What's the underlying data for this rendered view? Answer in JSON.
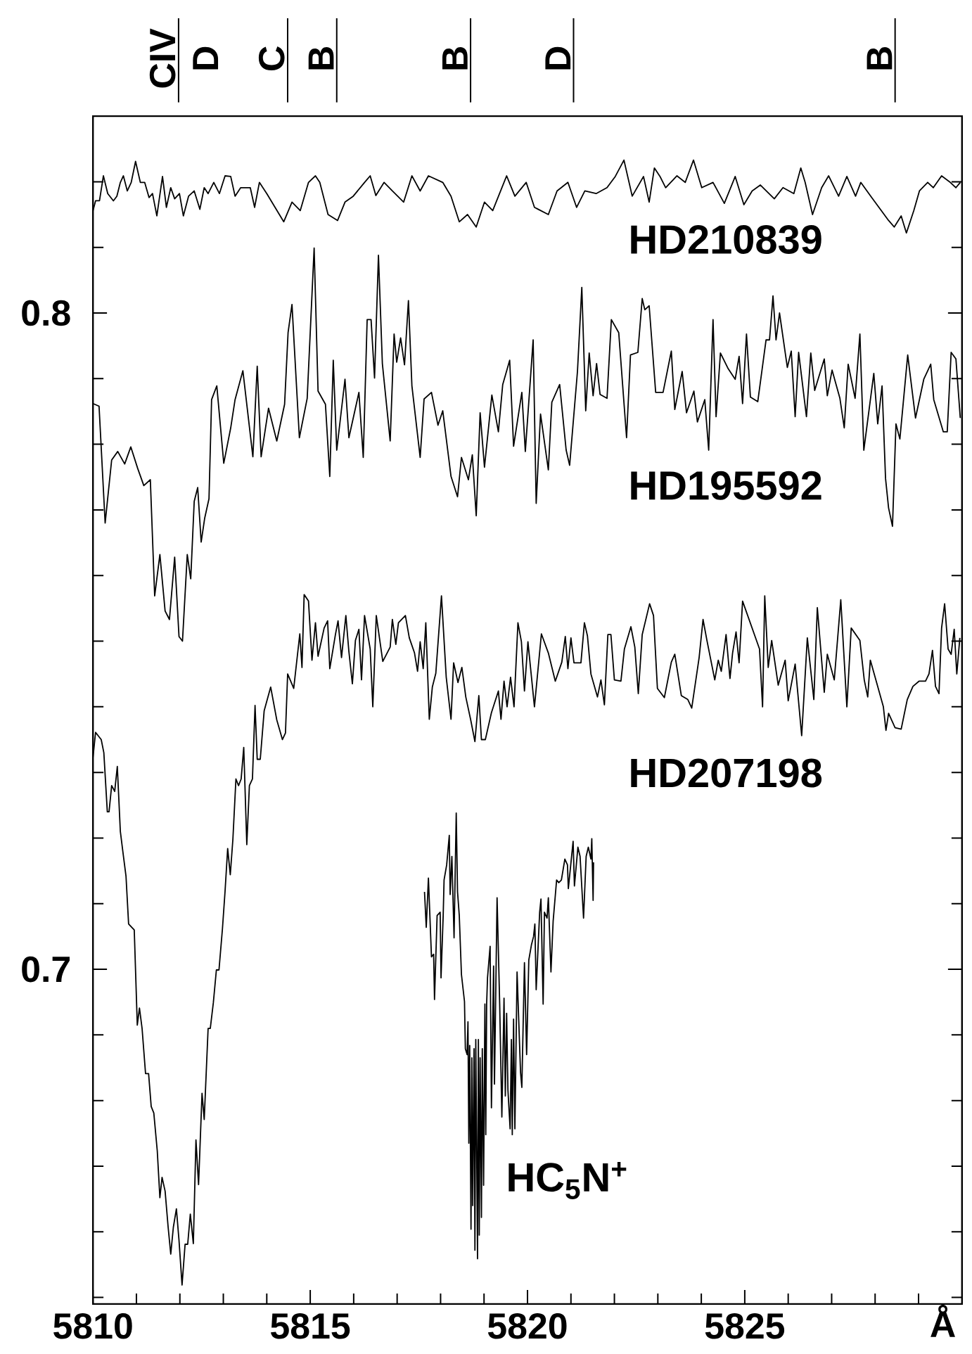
{
  "chart_data": {
    "type": "line",
    "xlabel": "Å",
    "xlim": [
      5810,
      5830
    ],
    "ylim": [
      0.649,
      0.83
    ],
    "xticks": [
      5810,
      {
        "value": 5811,
        "label": null
      },
      {
        "value": 5812,
        "label": null
      },
      {
        "value": 5813,
        "label": null
      },
      {
        "value": 5814,
        "label": null
      },
      5815,
      {
        "value": 5816,
        "label": null
      },
      {
        "value": 5817,
        "label": null
      },
      {
        "value": 5818,
        "label": null
      },
      {
        "value": 5819,
        "label": null
      },
      5820,
      {
        "value": 5821,
        "label": null
      },
      {
        "value": 5822,
        "label": null
      },
      {
        "value": 5823,
        "label": null
      },
      {
        "value": 5824,
        "label": null
      },
      5825,
      {
        "value": 5826,
        "label": null
      },
      {
        "value": 5827,
        "label": null
      },
      {
        "value": 5828,
        "label": null
      },
      {
        "value": 5829,
        "label": null
      }
    ],
    "yticks": [
      {
        "value": 0.65,
        "label": null
      },
      {
        "value": 0.66,
        "label": null
      },
      {
        "value": 0.67,
        "label": null
      },
      {
        "value": 0.68,
        "label": null
      },
      {
        "value": 0.69,
        "label": null
      },
      0.7,
      {
        "value": 0.71,
        "label": null
      },
      {
        "value": 0.72,
        "label": null
      },
      {
        "value": 0.73,
        "label": null
      },
      {
        "value": 0.74,
        "label": null
      },
      {
        "value": 0.75,
        "label": null
      },
      {
        "value": 0.76,
        "label": null
      },
      {
        "value": 0.77,
        "label": null
      },
      {
        "value": 0.78,
        "label": null
      },
      {
        "value": 0.79,
        "label": null
      },
      0.8,
      {
        "value": 0.81,
        "label": null
      },
      {
        "value": 0.82,
        "label": null
      },
      {
        "value": 0.83,
        "label": null
      }
    ],
    "ref_lines": [
      {
        "axis": "x",
        "value": 5811.97,
        "label": "CIV"
      },
      {
        "axis": "x",
        "value": 5814.48,
        "label": "C"
      },
      {
        "axis": "x",
        "value": 5815.61,
        "label": "B"
      },
      {
        "axis": "x",
        "value": 5818.69,
        "label": "B"
      },
      {
        "axis": "x",
        "value": 5821.06,
        "label": "D"
      },
      {
        "axis": "x",
        "value": 5828.46,
        "label": "B"
      }
    ],
    "annotations": [
      "D"
    ],
    "series": [
      {
        "name": "HD210839",
        "color": "#000000",
        "x": [
          5810.0,
          5810.06,
          5810.15,
          5810.24,
          5810.34,
          5810.47,
          5810.55,
          5810.63,
          5810.7,
          5810.79,
          5810.88,
          5810.98,
          5811.09,
          5811.19,
          5811.29,
          5811.37,
          5811.47,
          5811.6,
          5811.69,
          5811.79,
          5811.88,
          5811.99,
          5812.08,
          5812.2,
          5812.33,
          5812.46,
          5812.56,
          5812.65,
          5812.78,
          5812.91,
          5813.04,
          5813.17,
          5813.27,
          5813.4,
          5813.62,
          5813.72,
          5813.83,
          5814.0,
          5814.19,
          5814.39,
          5814.58,
          5814.77,
          5814.96,
          5815.12,
          5815.22,
          5815.41,
          5815.63,
          5815.8,
          5815.99,
          5816.25,
          5816.38,
          5816.51,
          5816.7,
          5816.89,
          5817.15,
          5817.34,
          5817.53,
          5817.72,
          5818.05,
          5818.24,
          5818.43,
          5818.62,
          5818.82,
          5819.01,
          5819.2,
          5819.52,
          5819.71,
          5819.97,
          5820.16,
          5820.48,
          5820.68,
          5820.93,
          5821.13,
          5821.32,
          5821.58,
          5821.83,
          5822.02,
          5822.22,
          5822.41,
          5822.67,
          5822.8,
          5822.92,
          5823.05,
          5823.18,
          5823.44,
          5823.63,
          5823.82,
          5824.01,
          5824.27,
          5824.53,
          5824.78,
          5824.98,
          5825.17,
          5825.36,
          5825.68,
          5825.88,
          5826.13,
          5826.29,
          5826.39,
          5826.56,
          5826.77,
          5826.93,
          5827.16,
          5827.35,
          5827.55,
          5827.67,
          5827.9,
          5828.12,
          5828.31,
          5828.44,
          5828.6,
          5828.72,
          5828.89,
          5829.02,
          5829.21,
          5829.34,
          5829.53,
          5829.73,
          5829.86,
          5829.96
        ],
        "values": [
          0.8156,
          0.8171,
          0.8171,
          0.8209,
          0.8182,
          0.8171,
          0.8178,
          0.8199,
          0.8209,
          0.8186,
          0.8199,
          0.8231,
          0.8199,
          0.8199,
          0.8176,
          0.8182,
          0.8148,
          0.8208,
          0.8161,
          0.8191,
          0.8174,
          0.8182,
          0.8148,
          0.8178,
          0.8186,
          0.8158,
          0.8191,
          0.8182,
          0.8199,
          0.8182,
          0.8209,
          0.8208,
          0.8178,
          0.8191,
          0.8191,
          0.8161,
          0.8199,
          0.8182,
          0.8161,
          0.8139,
          0.8169,
          0.8156,
          0.8199,
          0.8209,
          0.8199,
          0.815,
          0.8141,
          0.8169,
          0.8178,
          0.8199,
          0.8209,
          0.8179,
          0.8199,
          0.8186,
          0.8169,
          0.8209,
          0.8186,
          0.8209,
          0.8199,
          0.8178,
          0.8139,
          0.815,
          0.8131,
          0.8169,
          0.8156,
          0.8209,
          0.8178,
          0.8199,
          0.8161,
          0.815,
          0.8186,
          0.8199,
          0.8161,
          0.8186,
          0.8182,
          0.8191,
          0.8208,
          0.8233,
          0.8178,
          0.8208,
          0.8169,
          0.8221,
          0.8208,
          0.8191,
          0.8209,
          0.8199,
          0.8233,
          0.8191,
          0.8199,
          0.8167,
          0.8208,
          0.8165,
          0.8186,
          0.8195,
          0.8174,
          0.8191,
          0.8182,
          0.8221,
          0.8199,
          0.815,
          0.8191,
          0.8209,
          0.8178,
          0.8208,
          0.8178,
          0.8199,
          0.8178,
          0.8158,
          0.8141,
          0.8131,
          0.8148,
          0.8122,
          0.8156,
          0.8186,
          0.8199,
          0.8191,
          0.8209,
          0.8199,
          0.8191,
          0.8199
        ]
      },
      {
        "name": "HD195592",
        "color": "#000000",
        "x": [
          5810.0,
          5810.14,
          5810.28,
          5810.43,
          5810.57,
          5810.73,
          5810.87,
          5811.03,
          5811.17,
          5811.32,
          5811.42,
          5811.54,
          5811.66,
          5811.76,
          5811.88,
          5811.98,
          5812.06,
          5812.17,
          5812.25,
          5812.33,
          5812.41,
          5812.49,
          5812.57,
          5812.67,
          5812.73,
          5812.85,
          5813.01,
          5813.17,
          5813.27,
          5813.45,
          5813.68,
          5813.78,
          5813.87,
          5814.04,
          5814.23,
          5814.41,
          5814.49,
          5814.58,
          5814.75,
          5814.93,
          5815.09,
          5815.18,
          5815.35,
          5815.45,
          5815.53,
          5815.61,
          5815.8,
          5815.89,
          5816.12,
          5816.22,
          5816.31,
          5816.4,
          5816.48,
          5816.57,
          5816.66,
          5816.84,
          5816.93,
          5816.99,
          5817.08,
          5817.17,
          5817.26,
          5817.34,
          5817.53,
          5817.62,
          5817.79,
          5817.94,
          5818.05,
          5818.24,
          5818.39,
          5818.48,
          5818.64,
          5818.73,
          5818.82,
          5818.91,
          5819.01,
          5819.18,
          5819.33,
          5819.43,
          5819.59,
          5819.68,
          5819.87,
          5819.95,
          5820.13,
          5820.2,
          5820.3,
          5820.48,
          5820.56,
          5820.74,
          5820.89,
          5820.97,
          5821.15,
          5821.25,
          5821.34,
          5821.42,
          5821.51,
          5821.59,
          5821.67,
          5821.83,
          5821.93,
          5822.1,
          5822.28,
          5822.37,
          5822.54,
          5822.64,
          5822.7,
          5822.8,
          5822.95,
          5823.12,
          5823.31,
          5823.39,
          5823.56,
          5823.66,
          5823.83,
          5823.91,
          5824.08,
          5824.17,
          5824.27,
          5824.34,
          5824.44,
          5824.62,
          5824.78,
          5824.87,
          5824.95,
          5825.04,
          5825.13,
          5825.3,
          5825.49,
          5825.57,
          5825.65,
          5825.72,
          5825.8,
          5825.98,
          5826.07,
          5826.16,
          5826.24,
          5826.42,
          5826.52,
          5826.61,
          5826.83,
          5826.9,
          5827.01,
          5827.19,
          5827.29,
          5827.38,
          5827.54,
          5827.65,
          5827.74,
          5827.97,
          5828.06,
          5828.16,
          5828.24,
          5828.31,
          5828.4,
          5828.48,
          5828.57,
          5828.75,
          5828.93,
          5829.12,
          5829.28,
          5829.35,
          5829.57,
          5829.66,
          5829.75,
          5829.86,
          5829.96
        ],
        "values": [
          0.7862,
          0.7858,
          0.768,
          0.7776,
          0.7789,
          0.777,
          0.7796,
          0.7763,
          0.7737,
          0.7746,
          0.7569,
          0.7632,
          0.7546,
          0.7533,
          0.7628,
          0.7507,
          0.75,
          0.7632,
          0.7595,
          0.7713,
          0.7734,
          0.7651,
          0.7687,
          0.7717,
          0.7868,
          0.7889,
          0.7771,
          0.7825,
          0.7868,
          0.7912,
          0.7781,
          0.7919,
          0.7781,
          0.7855,
          0.7805,
          0.7861,
          0.797,
          0.8013,
          0.781,
          0.787,
          0.8099,
          0.7881,
          0.7861,
          0.7751,
          0.7928,
          0.7791,
          0.7899,
          0.781,
          0.7879,
          0.778,
          0.799,
          0.799,
          0.7901,
          0.8088,
          0.7923,
          0.7805,
          0.7968,
          0.7925,
          0.7962,
          0.7921,
          0.8019,
          0.7889,
          0.778,
          0.7869,
          0.7879,
          0.7829,
          0.7851,
          0.7751,
          0.772,
          0.778,
          0.7746,
          0.7784,
          0.7691,
          0.7848,
          0.7765,
          0.7875,
          0.7819,
          0.7891,
          0.7928,
          0.7797,
          0.7879,
          0.7789,
          0.7959,
          0.771,
          0.7846,
          0.7761,
          0.7864,
          0.7891,
          0.7791,
          0.7768,
          0.7911,
          0.8039,
          0.7851,
          0.7939,
          0.7874,
          0.7923,
          0.7876,
          0.787,
          0.799,
          0.797,
          0.781,
          0.7936,
          0.794,
          0.8022,
          0.8005,
          0.8011,
          0.7879,
          0.7879,
          0.7942,
          0.7853,
          0.7911,
          0.7848,
          0.7881,
          0.7834,
          0.7868,
          0.7791,
          0.799,
          0.7842,
          0.7939,
          0.7915,
          0.7899,
          0.7934,
          0.7862,
          0.7968,
          0.7872,
          0.7865,
          0.7959,
          0.7959,
          0.8026,
          0.7959,
          0.8,
          0.7917,
          0.7942,
          0.7842,
          0.794,
          0.7842,
          0.7939,
          0.7882,
          0.793,
          0.7874,
          0.7913,
          0.787,
          0.7825,
          0.7922,
          0.787,
          0.7968,
          0.7791,
          0.7908,
          0.7831,
          0.7889,
          0.7748,
          0.7703,
          0.7675,
          0.7831,
          0.7808,
          0.7936,
          0.784,
          0.7899,
          0.7922,
          0.7868,
          0.7819,
          0.7819,
          0.794,
          0.793,
          0.784
        ]
      },
      {
        "name": "HD207198",
        "color": "#000000",
        "x": [
          5810.0,
          5810.06,
          5810.19,
          5810.25,
          5810.33,
          5810.37,
          5810.43,
          5810.5,
          5810.56,
          5810.63,
          5810.69,
          5810.76,
          5810.82,
          5810.95,
          5811.02,
          5811.07,
          5811.13,
          5811.21,
          5811.28,
          5811.34,
          5811.4,
          5811.48,
          5811.54,
          5811.59,
          5811.66,
          5811.73,
          5811.79,
          5811.85,
          5811.92,
          5811.98,
          5812.05,
          5812.12,
          5812.18,
          5812.24,
          5812.31,
          5812.37,
          5812.43,
          5812.51,
          5812.56,
          5812.65,
          5812.7,
          5812.77,
          5812.84,
          5812.9,
          5812.98,
          5813.04,
          5813.1,
          5813.16,
          5813.22,
          5813.29,
          5813.35,
          5813.41,
          5813.47,
          5813.54,
          5813.6,
          5813.67,
          5813.73,
          5813.78,
          5813.85,
          5813.94,
          5814.09,
          5814.23,
          5814.36,
          5814.43,
          5814.48,
          5814.62,
          5814.76,
          5814.81,
          5814.86,
          5814.96,
          5815.04,
          5815.12,
          5815.18,
          5815.32,
          5815.4,
          5815.45,
          5815.58,
          5815.64,
          5815.72,
          5815.82,
          5815.89,
          5815.97,
          5816.04,
          5816.12,
          5816.18,
          5816.25,
          5816.38,
          5816.44,
          5816.52,
          5816.67,
          5816.84,
          5816.89,
          5816.97,
          5817.03,
          5817.19,
          5817.28,
          5817.4,
          5817.47,
          5817.53,
          5817.6,
          5817.66,
          5817.74,
          5817.81,
          5817.89,
          5818.02,
          5818.13,
          5818.24,
          5818.3,
          5818.4,
          5818.49,
          5818.58,
          5818.69,
          5818.79,
          5818.88,
          5818.94,
          5819.03,
          5819.17,
          5819.33,
          5819.39,
          5819.46,
          5819.53,
          5819.61,
          5819.69,
          5819.78,
          5819.86,
          5819.93,
          5820.01,
          5820.16,
          5820.32,
          5820.48,
          5820.64,
          5820.79,
          5820.87,
          5820.93,
          5821.0,
          5821.07,
          5821.23,
          5821.31,
          5821.38,
          5821.46,
          5821.61,
          5821.69,
          5821.77,
          5821.85,
          5821.92,
          5822.0,
          5822.15,
          5822.23,
          5822.38,
          5822.47,
          5822.55,
          5822.64,
          5822.81,
          5822.9,
          5822.99,
          5823.15,
          5823.31,
          5823.39,
          5823.54,
          5823.69,
          5823.78,
          5823.95,
          5824.04,
          5824.13,
          5824.31,
          5824.39,
          5824.46,
          5824.57,
          5824.66,
          5824.72,
          5824.8,
          5824.87,
          5824.95,
          5825.34,
          5825.41,
          5825.46,
          5825.54,
          5825.62,
          5825.77,
          5825.93,
          5826.0,
          5826.16,
          5826.31,
          5826.44,
          5826.59,
          5826.67,
          5826.83,
          5826.9,
          5827.06,
          5827.21,
          5827.35,
          5827.45,
          5827.65,
          5827.75,
          5827.83,
          5827.89,
          5828.06,
          5828.19,
          5828.25,
          5828.31,
          5828.46,
          5828.6,
          5828.74,
          5828.87,
          5829.01,
          5829.16,
          5829.24,
          5829.32,
          5829.39,
          5829.47,
          5829.53,
          5829.6,
          5829.68,
          5829.75,
          5829.82,
          5829.88,
          5829.95
        ],
        "values": [
          0.7323,
          0.7361,
          0.735,
          0.733,
          0.724,
          0.724,
          0.728,
          0.7271,
          0.7309,
          0.721,
          0.7178,
          0.7142,
          0.7069,
          0.706,
          0.6915,
          0.6941,
          0.691,
          0.6841,
          0.6841,
          0.6791,
          0.6781,
          0.6723,
          0.6652,
          0.6683,
          0.6662,
          0.6607,
          0.6566,
          0.6607,
          0.6635,
          0.6587,
          0.6519,
          0.6581,
          0.6581,
          0.6627,
          0.6582,
          0.674,
          0.6672,
          0.6811,
          0.6771,
          0.691,
          0.691,
          0.6949,
          0.6999,
          0.6999,
          0.7062,
          0.7119,
          0.7184,
          0.7144,
          0.7198,
          0.729,
          0.728,
          0.729,
          0.7338,
          0.719,
          0.728,
          0.729,
          0.7402,
          0.732,
          0.732,
          0.7394,
          0.743,
          0.738,
          0.735,
          0.736,
          0.745,
          0.7428,
          0.7511,
          0.746,
          0.7571,
          0.7561,
          0.7471,
          0.7528,
          0.7477,
          0.752,
          0.7531,
          0.7458,
          0.751,
          0.7531,
          0.7475,
          0.7539,
          0.7484,
          0.7435,
          0.7501,
          0.7518,
          0.7441,
          0.7539,
          0.7488,
          0.74,
          0.7539,
          0.7469,
          0.7491,
          0.7533,
          0.7495,
          0.7528,
          0.7539,
          0.7505,
          0.7482,
          0.7454,
          0.7499,
          0.7458,
          0.7528,
          0.7381,
          0.743,
          0.7451,
          0.7569,
          0.7445,
          0.7381,
          0.7467,
          0.7437,
          0.746,
          0.7415,
          0.7381,
          0.7347,
          0.7417,
          0.735,
          0.735,
          0.7391,
          0.7424,
          0.7381,
          0.7439,
          0.74,
          0.7445,
          0.74,
          0.7528,
          0.7499,
          0.7424,
          0.7499,
          0.74,
          0.7511,
          0.7482,
          0.7439,
          0.7468,
          0.7507,
          0.7458,
          0.7505,
          0.7467,
          0.7467,
          0.7528,
          0.7508,
          0.745,
          0.7415,
          0.7441,
          0.7403,
          0.751,
          0.751,
          0.7441,
          0.7439,
          0.7488,
          0.7522,
          0.7491,
          0.742,
          0.751,
          0.7557,
          0.7539,
          0.7428,
          0.7414,
          0.7468,
          0.748,
          0.7417,
          0.7411,
          0.7398,
          0.7475,
          0.7533,
          0.7501,
          0.7441,
          0.7471,
          0.7454,
          0.751,
          0.7443,
          0.7482,
          0.7514,
          0.7467,
          0.7561,
          0.7488,
          0.74,
          0.7569,
          0.746,
          0.7501,
          0.7433,
          0.7471,
          0.7409,
          0.7465,
          0.7356,
          0.7505,
          0.7411,
          0.7551,
          0.7422,
          0.748,
          0.7441,
          0.7563,
          0.74,
          0.752,
          0.7501,
          0.7441,
          0.7415,
          0.7471,
          0.7431,
          0.74,
          0.7364,
          0.739,
          0.7368,
          0.7366,
          0.7411,
          0.7431,
          0.7439,
          0.7439,
          0.745,
          0.7486,
          0.7431,
          0.742,
          0.752,
          0.7557,
          0.7488,
          0.748,
          0.7518,
          0.745,
          0.7505
        ]
      },
      {
        "name": "HC$_{5}$N$^{+}$",
        "color": "#000000",
        "x": [
          5817.63,
          5817.67,
          5817.72,
          5817.79,
          5817.84,
          5817.86,
          5817.92,
          5817.99,
          5818.01,
          5818.06,
          5818.08,
          5818.14,
          5818.2,
          5818.22,
          5818.26,
          5818.31,
          5818.36,
          5818.39,
          5818.43,
          5818.48,
          5818.55,
          5818.57,
          5818.61,
          5818.63,
          5818.65,
          5818.67,
          5818.7,
          5818.72,
          5818.74,
          5818.77,
          5818.79,
          5818.81,
          5818.85,
          5818.87,
          5818.89,
          5818.91,
          5818.94,
          5818.96,
          5818.99,
          5819.02,
          5819.04,
          5819.06,
          5819.08,
          5819.14,
          5819.17,
          5819.22,
          5819.24,
          5819.3,
          5819.36,
          5819.41,
          5819.46,
          5819.49,
          5819.52,
          5819.55,
          5819.6,
          5819.63,
          5819.65,
          5819.68,
          5819.71,
          5819.76,
          5819.84,
          5819.87,
          5819.93,
          5819.98,
          5820.03,
          5820.09,
          5820.14,
          5820.17,
          5820.2,
          5820.28,
          5820.31,
          5820.36,
          5820.39,
          5820.45,
          5820.48,
          5820.54,
          5820.59,
          5820.67,
          5820.72,
          5820.78,
          5820.86,
          5820.92,
          5820.94,
          5821.05,
          5821.08,
          5821.16,
          5821.21,
          5821.29,
          5821.35,
          5821.4,
          5821.46,
          5821.48,
          5821.51,
          5821.52
        ],
        "values": [
          0.7118,
          0.7064,
          0.7139,
          0.7019,
          0.7023,
          0.6954,
          0.7082,
          0.7087,
          0.6987,
          0.7082,
          0.7136,
          0.7159,
          0.7204,
          0.7114,
          0.7172,
          0.7048,
          0.7238,
          0.7118,
          0.7082,
          0.6992,
          0.6951,
          0.6879,
          0.687,
          0.692,
          0.6735,
          0.6884,
          0.6604,
          0.6865,
          0.664,
          0.6879,
          0.6572,
          0.6893,
          0.6559,
          0.6893,
          0.6595,
          0.6865,
          0.6622,
          0.6879,
          0.6671,
          0.6947,
          0.6748,
          0.6947,
          0.6987,
          0.7035,
          0.6789,
          0.7005,
          0.6825,
          0.7109,
          0.6947,
          0.6775,
          0.6956,
          0.6807,
          0.6933,
          0.6816,
          0.6757,
          0.6893,
          0.6748,
          0.6924,
          0.6757,
          0.6996,
          0.6843,
          0.682,
          0.701,
          0.687,
          0.7014,
          0.7037,
          0.705,
          0.7069,
          0.6969,
          0.7087,
          0.7107,
          0.6947,
          0.7087,
          0.7078,
          0.7109,
          0.6996,
          0.7073,
          0.7136,
          0.7132,
          0.7136,
          0.7168,
          0.7159,
          0.7123,
          0.7195,
          0.7127,
          0.7186,
          0.7172,
          0.7078,
          0.7172,
          0.7186,
          0.7168,
          0.7199,
          0.7105,
          0.7163
        ]
      }
    ]
  }
}
